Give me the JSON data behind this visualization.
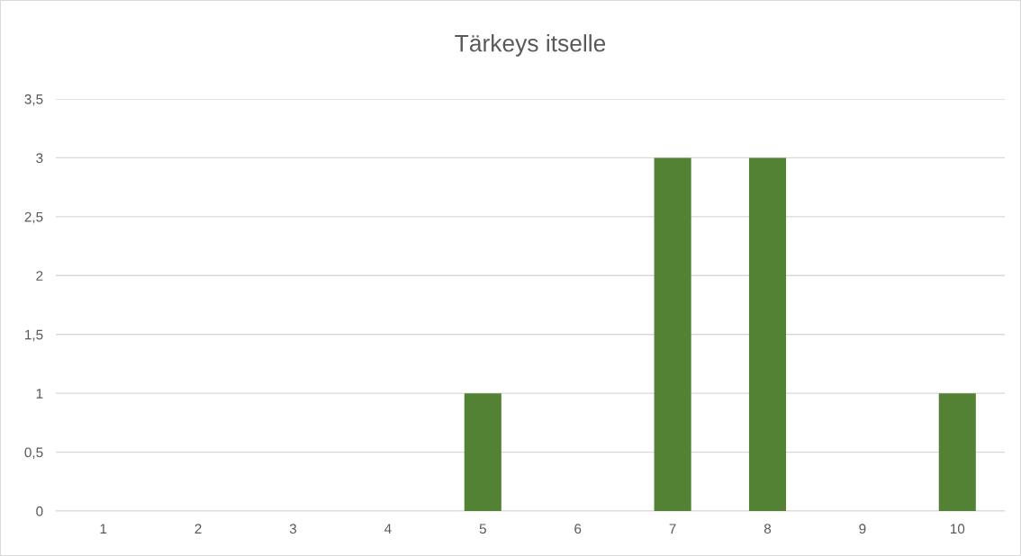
{
  "chart_data": {
    "type": "bar",
    "title": "Tärkeys itselle",
    "categories": [
      "1",
      "2",
      "3",
      "4",
      "5",
      "6",
      "7",
      "8",
      "9",
      "10"
    ],
    "values": [
      0,
      0,
      0,
      0,
      1,
      0,
      3,
      3,
      0,
      1
    ],
    "color": "#548235",
    "ylim": [
      0,
      3.5
    ],
    "yticks": [
      0,
      {
        "value": 0.5,
        "label": "0,5"
      },
      1,
      {
        "value": 1.5,
        "label": "1,5"
      },
      2,
      {
        "value": 2.5,
        "label": "2,5"
      },
      3,
      {
        "value": 3.5,
        "label": "3,5"
      }
    ],
    "grid": "y"
  }
}
